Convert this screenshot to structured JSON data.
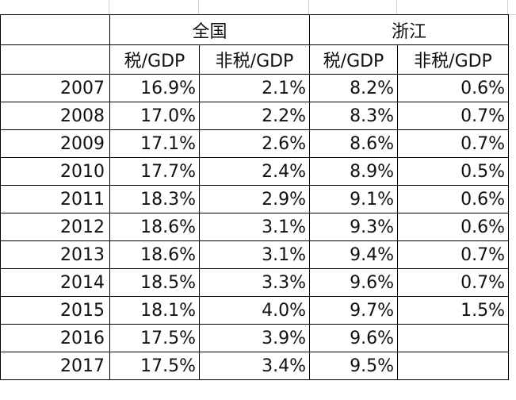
{
  "header": {
    "group1": "全国",
    "group2": "浙江",
    "cols": [
      "税/GDP",
      "非税/GDP",
      "税/GDP",
      "非税/GDP"
    ]
  },
  "rows": [
    {
      "year": "2007",
      "v": [
        "16.9%",
        "2.1%",
        "8.2%",
        "0.6%"
      ]
    },
    {
      "year": "2008",
      "v": [
        "17.0%",
        "2.2%",
        "8.3%",
        "0.7%"
      ]
    },
    {
      "year": "2009",
      "v": [
        "17.1%",
        "2.6%",
        "8.6%",
        "0.7%"
      ]
    },
    {
      "year": "2010",
      "v": [
        "17.7%",
        "2.4%",
        "8.9%",
        "0.5%"
      ]
    },
    {
      "year": "2011",
      "v": [
        "18.3%",
        "2.9%",
        "9.1%",
        "0.6%"
      ]
    },
    {
      "year": "2012",
      "v": [
        "18.6%",
        "3.1%",
        "9.3%",
        "0.6%"
      ]
    },
    {
      "year": "2013",
      "v": [
        "18.6%",
        "3.1%",
        "9.4%",
        "0.7%"
      ]
    },
    {
      "year": "2014",
      "v": [
        "18.5%",
        "3.3%",
        "9.6%",
        "0.7%"
      ]
    },
    {
      "year": "2015",
      "v": [
        "18.1%",
        "4.0%",
        "9.7%",
        "1.5%"
      ]
    },
    {
      "year": "2016",
      "v": [
        "17.5%",
        "3.9%",
        "9.6%",
        ""
      ]
    },
    {
      "year": "2017",
      "v": [
        "17.5%",
        "3.4%",
        "9.5%",
        ""
      ]
    }
  ]
}
